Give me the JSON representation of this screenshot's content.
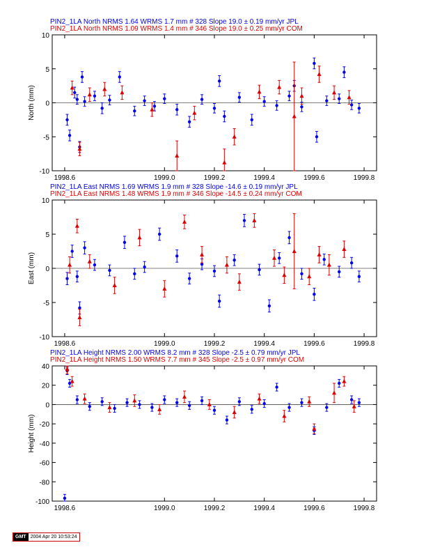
{
  "stamp": {
    "logo": "GMT",
    "timestamp": "2004 Apr 20 10:53:24"
  },
  "colors": {
    "jpl": "#0000ee",
    "com": "#dd0000",
    "frame": "#000000"
  },
  "chart_data": [
    {
      "type": "scatter",
      "ylabel": "North (mm)",
      "xlim": [
        1998.55,
        1999.85
      ],
      "ylim": [
        -10,
        10
      ],
      "xticks": [
        1998.6,
        1999.0,
        1999.2,
        1999.4,
        1999.6,
        1999.8
      ],
      "xtick_labels": [
        "1998.6",
        "1999.0",
        "1999.2",
        "1999.4",
        "1999.6",
        "1999.8"
      ],
      "yticks": [
        -10,
        -5,
        0,
        5,
        10
      ],
      "ytick_labels": [
        "-10",
        "-5",
        "0",
        "5",
        "10"
      ],
      "legend": [
        {
          "text": "PIN2_1LA North NRMS 1.64 WRMS  1.7 mm # 328 Slope   19.0 ±  0.19 mm/yr JPL",
          "color": "#0000ee"
        },
        {
          "text": "PIN2_1LA North NRMS 1.09 WRMS  1.4 mm # 346 Slope   19.0 ±  0.25 mm/yr COM",
          "color": "#dd0000"
        }
      ],
      "series": [
        {
          "id": "jpl",
          "color": "#0000ee",
          "marker": "dot",
          "x": [
            1998.61,
            1998.62,
            1998.64,
            1998.65,
            1998.66,
            1998.67,
            1998.68,
            1998.72,
            1998.75,
            1998.78,
            1998.82,
            1998.88,
            1998.92,
            1998.96,
            1999.0,
            1999.05,
            1999.1,
            1999.15,
            1999.2,
            1999.22,
            1999.24,
            1999.3,
            1999.35,
            1999.4,
            1999.45,
            1999.5,
            1999.52,
            1999.55,
            1999.6,
            1999.61,
            1999.65,
            1999.7,
            1999.72,
            1999.75,
            1999.78
          ],
          "y": [
            -2.5,
            -4.8,
            1.5,
            0.5,
            -6.5,
            3.8,
            0.2,
            1.0,
            -0.8,
            0.4,
            3.8,
            -1.2,
            0.3,
            -0.5,
            0.6,
            -1.0,
            -2.8,
            0.5,
            -0.8,
            3.2,
            -2.0,
            0.8,
            -2.5,
            0.2,
            -0.4,
            1.0,
            2.5,
            -0.6,
            5.8,
            -5.0,
            0.3,
            0.6,
            4.5,
            -0.3,
            -0.8
          ],
          "err": [
            0.8,
            0.8,
            0.8,
            0.7,
            0.8,
            0.8,
            0.7,
            0.7,
            0.8,
            0.7,
            0.8,
            0.7,
            0.7,
            0.7,
            0.7,
            0.8,
            0.8,
            0.7,
            0.7,
            0.8,
            0.8,
            0.7,
            0.8,
            0.7,
            0.7,
            0.7,
            0.8,
            0.7,
            0.8,
            0.8,
            0.7,
            0.7,
            0.8,
            0.7,
            0.7
          ]
        },
        {
          "id": "com",
          "color": "#dd0000",
          "marker": "triangle",
          "x": [
            1998.63,
            1998.66,
            1998.7,
            1998.76,
            1998.83,
            1998.95,
            1999.05,
            1999.12,
            1999.24,
            1999.28,
            1999.38,
            1999.46,
            1999.52,
            1999.55,
            1999.62,
            1999.68,
            1999.74
          ],
          "y": [
            2.2,
            -6.8,
            1.2,
            2.0,
            1.5,
            -1.0,
            -7.8,
            -1.5,
            -8.8,
            -5.0,
            1.6,
            2.3,
            -2.0,
            1.0,
            4.2,
            1.5,
            0.8
          ],
          "err": [
            1.0,
            1.0,
            1.0,
            1.0,
            1.0,
            1.0,
            2.2,
            1.0,
            2.0,
            1.2,
            1.0,
            1.0,
            8.0,
            1.2,
            1.2,
            1.0,
            1.0
          ]
        }
      ]
    },
    {
      "type": "scatter",
      "ylabel": "East (mm)",
      "xlim": [
        1998.55,
        1999.85
      ],
      "ylim": [
        -10,
        10
      ],
      "xticks": [
        1998.6,
        1999.0,
        1999.2,
        1999.4,
        1999.6,
        1999.8
      ],
      "xtick_labels": [
        "1998.6",
        "1999.0",
        "1999.2",
        "1999.4",
        "1999.6",
        "1999.8"
      ],
      "yticks": [
        -10,
        -5,
        0,
        5,
        10
      ],
      "ytick_labels": [
        "-10",
        "-5",
        "0",
        "5",
        "10"
      ],
      "legend": [
        {
          "text": "PIN2_1LA East NRMS 1.69 WRMS  1.9 mm # 328 Slope  -14.6 ±  0.19 mm/yr JPL",
          "color": "#0000ee"
        },
        {
          "text": "PIN2_1LA East NRMS 1.48 WRMS  1.9 mm # 346 Slope  -14.5 ±  0.24 mm/yr COM",
          "color": "#dd0000"
        }
      ],
      "series": [
        {
          "id": "jpl",
          "color": "#0000ee",
          "marker": "dot",
          "x": [
            1998.61,
            1998.63,
            1998.65,
            1998.66,
            1998.68,
            1998.72,
            1998.78,
            1998.84,
            1998.88,
            1998.92,
            1998.98,
            1999.05,
            1999.1,
            1999.15,
            1999.2,
            1999.22,
            1999.28,
            1999.32,
            1999.38,
            1999.42,
            1999.46,
            1999.5,
            1999.55,
            1999.6,
            1999.64,
            1999.7,
            1999.75,
            1999.78
          ],
          "y": [
            -1.5,
            2.5,
            -1.2,
            -5.8,
            3.0,
            0.5,
            -0.3,
            3.8,
            -0.8,
            0.2,
            5.0,
            1.8,
            -1.5,
            0.6,
            -0.4,
            -4.8,
            1.2,
            7.0,
            -0.2,
            -5.5,
            1.5,
            4.5,
            -0.8,
            -3.8,
            1.3,
            -0.5,
            0.8,
            -1.2
          ],
          "err": [
            0.9,
            0.9,
            0.8,
            0.9,
            0.9,
            0.8,
            0.8,
            0.9,
            0.8,
            0.8,
            0.9,
            0.9,
            0.8,
            0.8,
            0.8,
            0.9,
            0.8,
            0.9,
            0.8,
            0.9,
            0.8,
            0.9,
            0.8,
            0.9,
            0.8,
            0.8,
            0.8,
            0.8
          ]
        },
        {
          "id": "com",
          "color": "#dd0000",
          "marker": "triangle",
          "x": [
            1998.62,
            1998.65,
            1998.66,
            1998.7,
            1998.8,
            1998.9,
            1999.0,
            1999.08,
            1999.15,
            1999.25,
            1999.3,
            1999.36,
            1999.44,
            1999.48,
            1999.52,
            1999.58,
            1999.62,
            1999.66,
            1999.72
          ],
          "y": [
            0.5,
            6.2,
            -7.2,
            1.0,
            -2.5,
            4.5,
            -3.0,
            6.8,
            2.0,
            0.5,
            -2.0,
            7.0,
            1.5,
            -1.0,
            2.5,
            -1.2,
            2.0,
            0.5,
            2.8
          ],
          "err": [
            1.2,
            1.0,
            1.2,
            1.0,
            1.2,
            1.2,
            1.2,
            1.0,
            1.2,
            1.2,
            1.2,
            1.0,
            1.2,
            1.2,
            5.5,
            1.2,
            1.2,
            1.5,
            1.2
          ]
        }
      ]
    },
    {
      "type": "scatter",
      "ylabel": "Height (mm)",
      "xlim": [
        1998.55,
        1999.85
      ],
      "ylim": [
        -100,
        40
      ],
      "xticks": [
        1998.6,
        1999.0,
        1999.2,
        1999.4,
        1999.6,
        1999.8
      ],
      "xtick_labels": [
        "1998.6",
        "1999.0",
        "1999.2",
        "1999.4",
        "1999.6",
        "1999.8"
      ],
      "yticks": [
        -100,
        -80,
        -60,
        -40,
        -20,
        0,
        20,
        40
      ],
      "ytick_labels": [
        "-100",
        "-80",
        "-60",
        "-40",
        "-20",
        "0",
        "20",
        "40"
      ],
      "legend": [
        {
          "text": "PIN2_1LA Height NRMS 2.00 WRMS  8.2 mm # 328 Slope   -2.5 ±  0.79 mm/yr JPL",
          "color": "#0000ee"
        },
        {
          "text": "PIN2_1LA Height NRMS 1.50 WRMS  7.7 mm # 345 Slope   -2.5 ±  0.97 mm/yr COM",
          "color": "#dd0000"
        }
      ],
      "series": [
        {
          "id": "jpl",
          "color": "#0000ee",
          "marker": "dot",
          "x": [
            1998.6,
            1998.61,
            1998.62,
            1998.65,
            1998.7,
            1998.75,
            1998.8,
            1998.85,
            1998.9,
            1998.95,
            1999.0,
            1999.05,
            1999.1,
            1999.15,
            1999.2,
            1999.25,
            1999.3,
            1999.35,
            1999.4,
            1999.45,
            1999.5,
            1999.55,
            1999.6,
            1999.65,
            1999.7,
            1999.75,
            1999.78
          ],
          "y": [
            -97,
            35,
            22,
            5,
            -2,
            3,
            -4,
            2,
            0,
            -3,
            5,
            2,
            -1,
            4,
            -6,
            -16,
            3,
            -5,
            1,
            18,
            -3,
            2,
            -27,
            -3,
            22,
            5,
            2
          ],
          "err": [
            4,
            4,
            4,
            4,
            4,
            4,
            4,
            4,
            4,
            4,
            4,
            4,
            4,
            4,
            4,
            4,
            4,
            4,
            4,
            4,
            4,
            4,
            4,
            4,
            4,
            4,
            4
          ]
        },
        {
          "id": "com",
          "color": "#dd0000",
          "marker": "triangle",
          "x": [
            1998.61,
            1998.63,
            1998.68,
            1998.78,
            1998.88,
            1998.98,
            1999.08,
            1999.18,
            1999.28,
            1999.38,
            1999.48,
            1999.58,
            1999.6,
            1999.68,
            1999.72,
            1999.76
          ],
          "y": [
            37,
            24,
            6,
            -3,
            4,
            -5,
            8,
            0,
            -8,
            6,
            -12,
            3,
            -25,
            12,
            24,
            -2
          ],
          "err": [
            5,
            5,
            5,
            5,
            6,
            5,
            6,
            5,
            6,
            5,
            6,
            5,
            5,
            10,
            5,
            6
          ]
        }
      ]
    }
  ]
}
